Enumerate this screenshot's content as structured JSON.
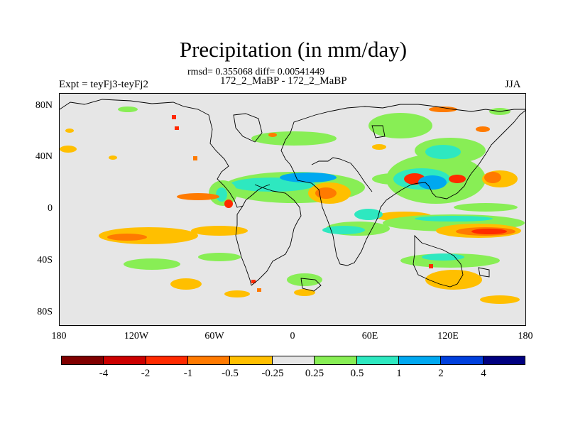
{
  "title": "Precipitation (in mm/day)",
  "stats": "rmsd= 0.355068 diff= 0.00541449",
  "subtitle": "172_2_MaBP - 172_2_MaBP",
  "left_label": "Expt = teyFj3-teyFj2",
  "right_label": "JJA",
  "y_ticks": [
    "80N",
    "40N",
    "0",
    "40S",
    "80S"
  ],
  "x_ticks": [
    "180",
    "120W",
    "60W",
    "0",
    "60E",
    "120E",
    "180"
  ],
  "colorbar": {
    "colors": [
      "#800000",
      "#cc0000",
      "#ff2a00",
      "#ff7a00",
      "#ffbf00",
      "#e6e6e6",
      "#88ee55",
      "#2ee8c0",
      "#00a8f0",
      "#0040dd",
      "#000080"
    ],
    "labels": [
      "-4",
      "-2",
      "-1",
      "-0.5",
      "-0.25",
      "0.25",
      "0.5",
      "1",
      "2",
      "4"
    ]
  },
  "chart_data": {
    "type": "heatmap",
    "title": "Precipitation (in mm/day)",
    "variable": "Precipitation difference",
    "units": "mm/day",
    "season": "JJA",
    "experiment": "teyFj3-teyFj2",
    "x_axis": {
      "range": [
        -180,
        180
      ],
      "ticks": [
        "180",
        "120W",
        "60W",
        "0",
        "60E",
        "120E",
        "180"
      ]
    },
    "y_axis": {
      "range": [
        -90,
        90
      ],
      "ticks": [
        "80N",
        "40N",
        "0",
        "40S",
        "80S"
      ]
    },
    "contour_levels": [
      -4,
      -2,
      -1,
      -0.5,
      -0.25,
      0.25,
      0.5,
      1,
      2,
      4
    ],
    "rmsd": 0.355068,
    "diff": 0.00541449
  }
}
